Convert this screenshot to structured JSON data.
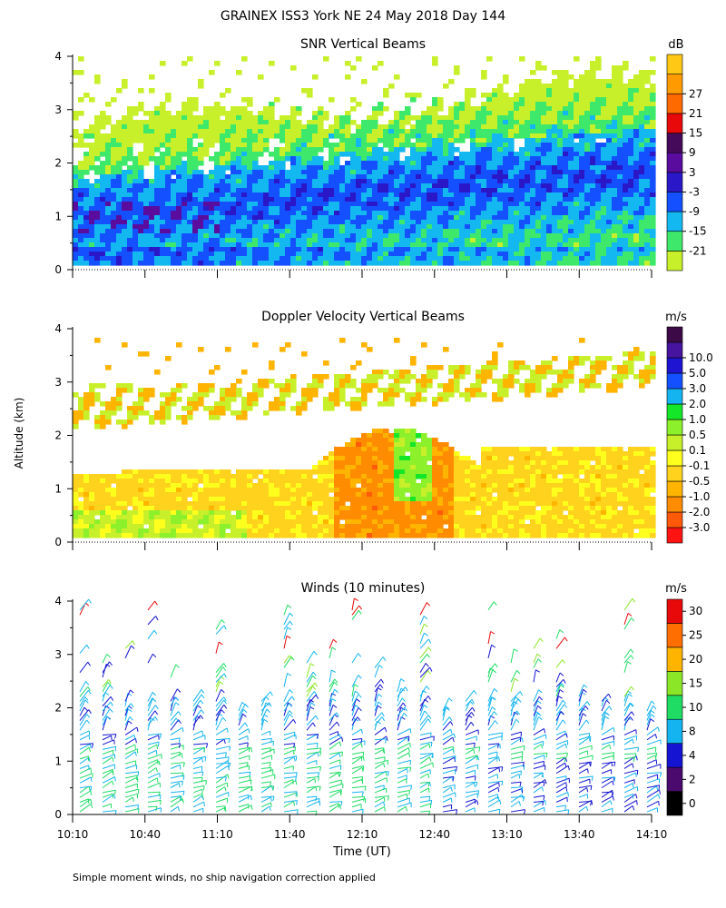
{
  "figure": {
    "title": "GRAINEX ISS3 York NE  24 May 2018 Day 144",
    "ylabel": "Altitude (km)",
    "xlabel": "Time (UT)",
    "footnote": "Simple moment winds, no ship navigation correction applied"
  },
  "colors": {
    "snr": [
      "#c8f02a",
      "#3ee86a",
      "#14b8f0",
      "#1450ff",
      "#2a18c8",
      "#5a0c9e",
      "#460a5a",
      "#e80a0a",
      "#ff6a00",
      "#ff9a00",
      "#ffc814"
    ],
    "doppler": [
      "#ff1414",
      "#ff5a0a",
      "#ff8c00",
      "#ffb400",
      "#ffd21e",
      "#ffff1e",
      "#c8f02a",
      "#8cf02a",
      "#14e628",
      "#14b4f0",
      "#1450ff",
      "#1e14d2",
      "#46149e",
      "#3c0a46"
    ],
    "winds": [
      "#000000",
      "#4b0a6e",
      "#1414d2",
      "#14b4f0",
      "#1edc64",
      "#8ce628",
      "#ffb400",
      "#ff6e00",
      "#e80a0a"
    ]
  },
  "chart_data": [
    {
      "type": "heatmap",
      "title": "SNR Vertical Beams",
      "unit": "dB",
      "x_ticks": [
        "10:10",
        "10:40",
        "11:10",
        "11:40",
        "12:10",
        "12:40",
        "13:10",
        "13:40",
        "14:10"
      ],
      "y_ticks": [
        "0",
        "1",
        "2",
        "3",
        "4"
      ],
      "ylim": [
        0,
        4
      ],
      "colorbar_labels": [
        "-21",
        "-15",
        "-9",
        "-3",
        "3",
        "9",
        "15",
        "21",
        "27"
      ],
      "grid": false
    },
    {
      "type": "heatmap",
      "title": "Doppler Velocity Vertical Beams",
      "unit": "m/s",
      "x_ticks": [
        "10:10",
        "10:40",
        "11:10",
        "11:40",
        "12:10",
        "12:40",
        "13:10",
        "13:40",
        "14:10"
      ],
      "y_ticks": [
        "0",
        "1",
        "2",
        "3",
        "4"
      ],
      "ylim": [
        0,
        4
      ],
      "colorbar_labels": [
        "-3.0",
        "-2.0",
        "-1.0",
        "-0.5",
        "-0.1",
        "0.1",
        "0.5",
        "1.0",
        "2.0",
        "3.0",
        "5.0",
        "10.0"
      ],
      "grid": false
    },
    {
      "type": "scatter",
      "title": "Winds (10 minutes)",
      "unit": "m/s",
      "x_ticks": [
        "10:10",
        "10:40",
        "11:10",
        "11:40",
        "12:10",
        "12:40",
        "13:10",
        "13:40",
        "14:10"
      ],
      "y_ticks": [
        "0",
        "1",
        "2",
        "3",
        "4"
      ],
      "ylim": [
        0,
        4
      ],
      "colorbar_labels": [
        "0",
        "2",
        "4",
        "8",
        "10",
        "15",
        "20",
        "25",
        "30"
      ],
      "grid": false
    }
  ]
}
